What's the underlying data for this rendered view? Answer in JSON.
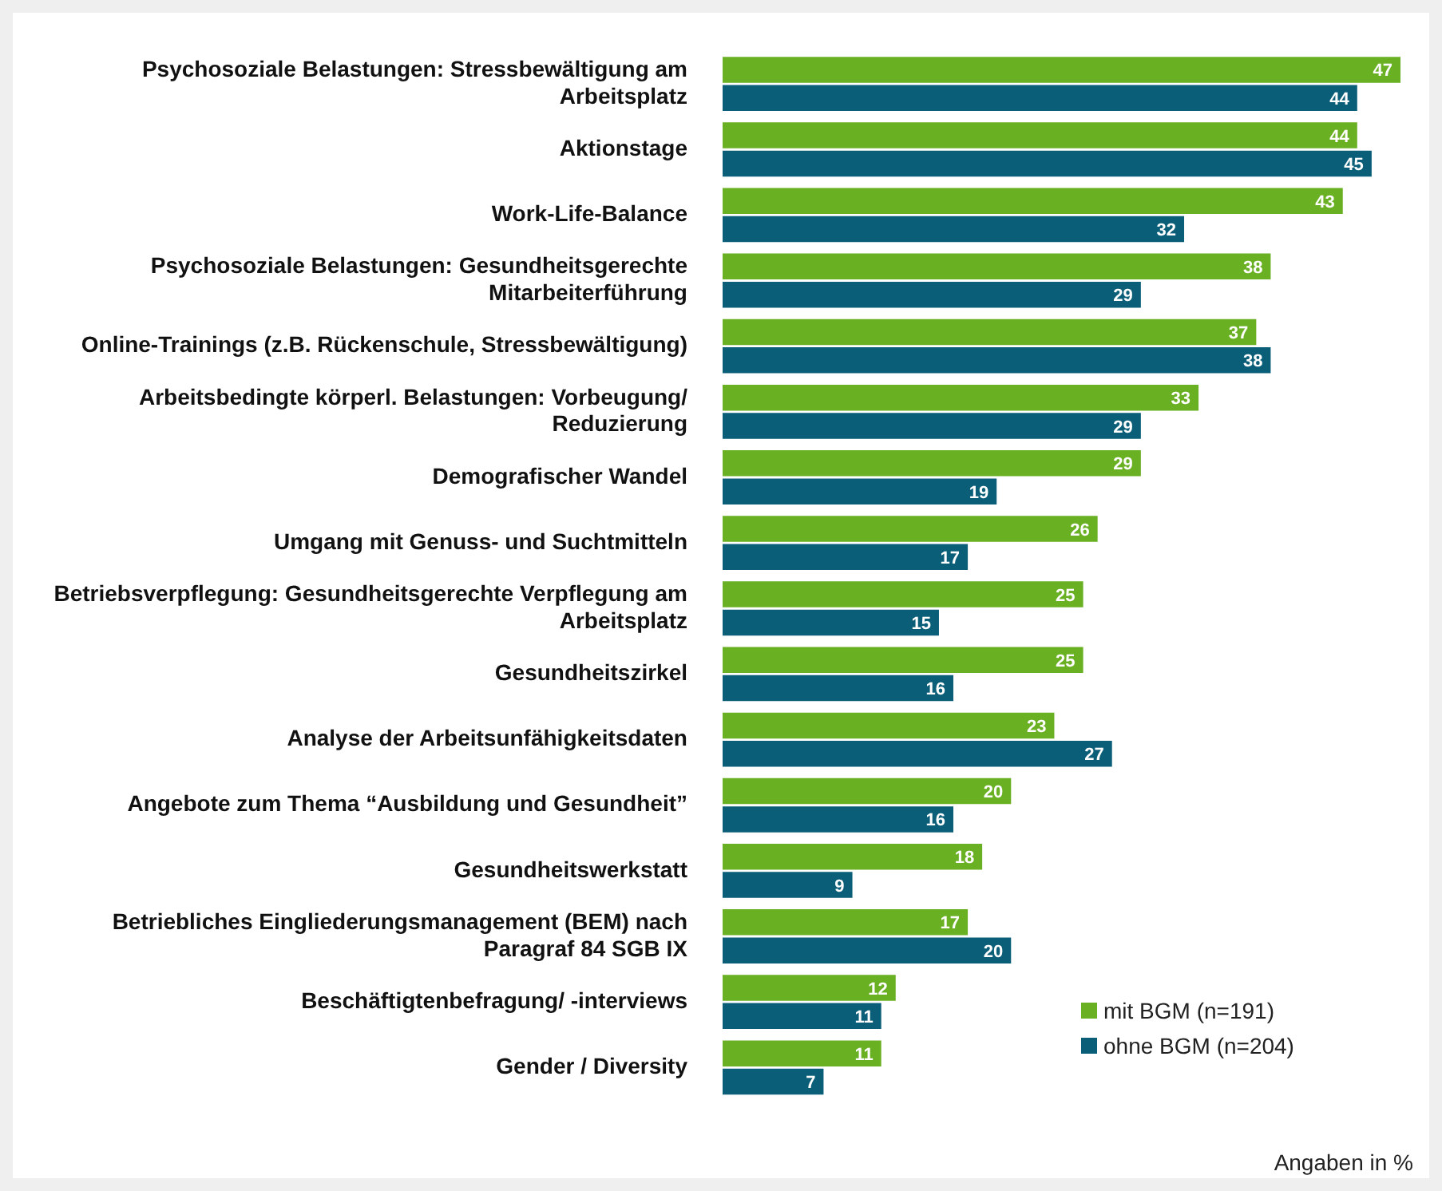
{
  "chart_data": {
    "type": "bar",
    "orientation": "horizontal",
    "categories": [
      "Psychosoziale Belastungen: Stressbewältigung am Arbeitsplatz",
      "Aktionstage",
      "Work-Life-Balance",
      "Psychosoziale Belastungen: Gesundheitsgerechte Mitarbeiterführung",
      "Online-Trainings (z.B. Rückenschule, Stressbewältigung)",
      "Arbeitsbedingte körperl. Belastungen: Vorbeugung/ Reduzierung",
      "Demografischer Wandel",
      "Umgang mit Genuss- und Suchtmitteln",
      "Betriebsverpflegung: Gesundheitsgerechte Verpflegung am Arbeitsplatz",
      "Gesundheitszirkel",
      "Analyse der Arbeitsunfähigkeitsdaten",
      "Angebote zum Thema “Ausbildung und Gesundheit”",
      "Gesundheitswerkstatt",
      "Betriebliches Eingliederungsmanagement (BEM) nach Paragraf 84 SGB IX",
      "Beschäftigtenbefragung/ -interviews",
      "Gender / Diversity"
    ],
    "series": [
      {
        "name": "mit BGM (n=191)",
        "color": "#6ab023",
        "values": [
          47,
          44,
          43,
          38,
          37,
          33,
          29,
          26,
          25,
          25,
          23,
          20,
          18,
          17,
          12,
          11
        ]
      },
      {
        "name": "ohne BGM (n=204)",
        "color": "#0b5e78",
        "values": [
          44,
          45,
          32,
          29,
          38,
          29,
          19,
          17,
          15,
          16,
          27,
          16,
          9,
          20,
          11,
          7
        ]
      }
    ],
    "xlim": [
      0,
      47
    ],
    "data_labels": true,
    "legend": "bottom right",
    "annotations": [
      "Angaben in %"
    ]
  }
}
